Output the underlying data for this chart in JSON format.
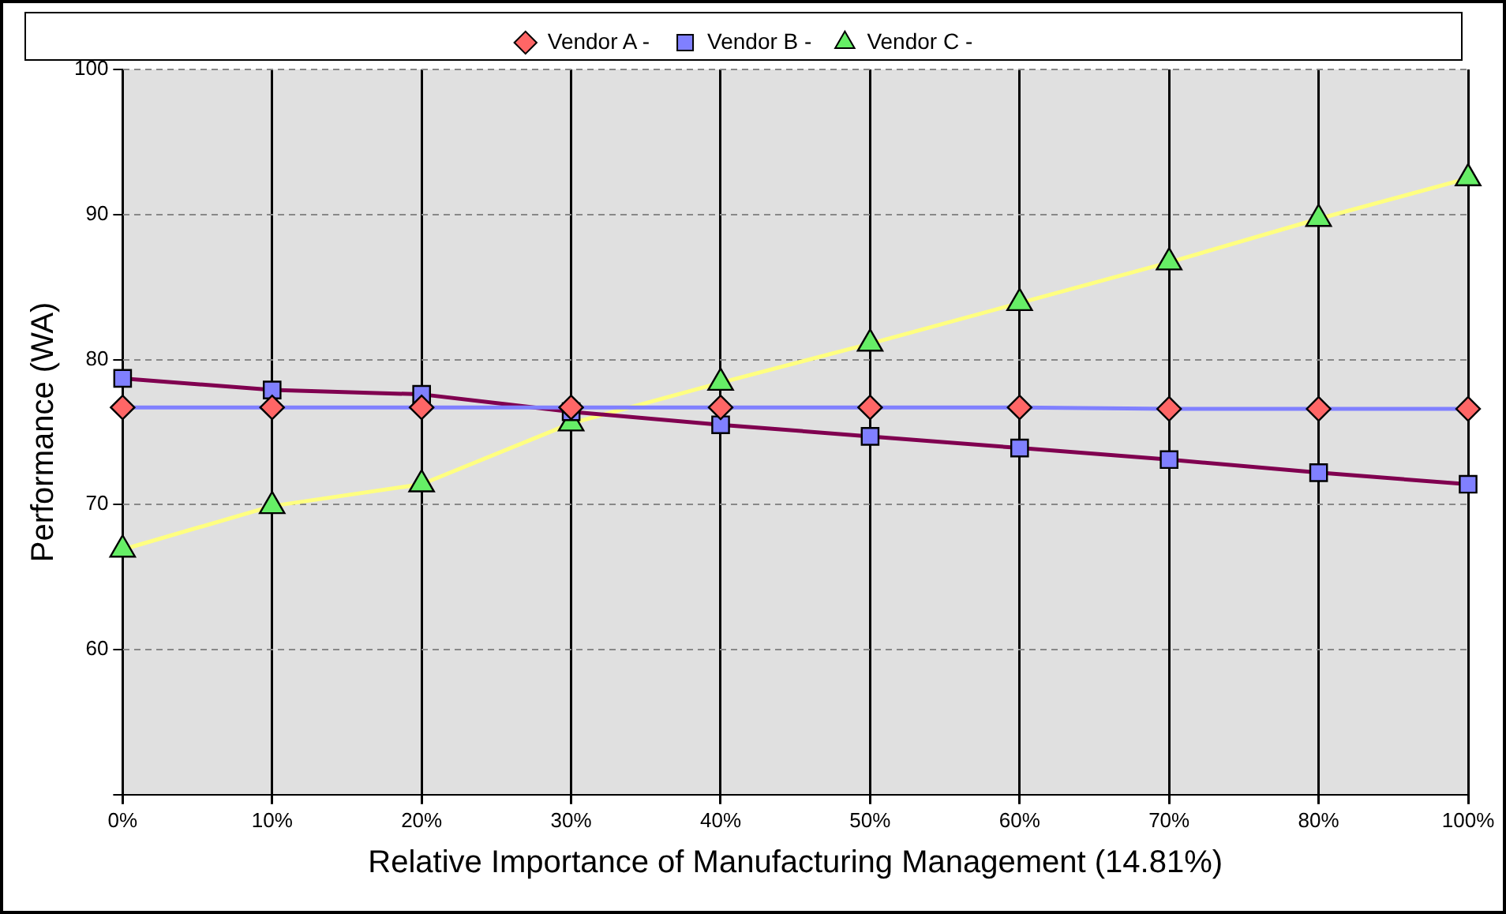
{
  "chart_data": {
    "type": "line",
    "xlabel": "Relative Importance of Manufacturing Management (14.81%)",
    "ylabel": "Performance (WA)",
    "categories": [
      "0%",
      "10%",
      "20%",
      "30%",
      "40%",
      "50%",
      "60%",
      "70%",
      "80%",
      "100%"
    ],
    "series": [
      {
        "name": "Vendor A -",
        "color": "#8080ff",
        "marker": "diamond",
        "colors": [
          "#ff6666",
          "#ff6666",
          "#ff6666",
          "#ff6666",
          "#ff6666",
          "#ff6666",
          "#ff6666",
          "#ff6666",
          "#ff6666",
          "#ff6666"
        ],
        "values": [
          76.7,
          76.7,
          76.7,
          76.7,
          76.7,
          76.7,
          76.7,
          76.6,
          76.6,
          76.6
        ]
      },
      {
        "name": "Vendor B -",
        "color": "#800050",
        "marker": "square",
        "colors": [
          "#8080ff",
          "#8080ff",
          "#8080ff",
          "#8080ff",
          "#8080ff",
          "#8080ff",
          "#8080ff",
          "#8080ff",
          "#8080ff",
          "#8080ff"
        ],
        "values": [
          78.7,
          77.9,
          77.6,
          76.4,
          75.5,
          74.7,
          73.9,
          73.1,
          72.2,
          71.4
        ]
      },
      {
        "name": "Vendor C -",
        "color": "#ffff80",
        "marker": "triangle",
        "colors": [
          "#66ee66",
          "#66ee66",
          "#66ee66",
          "#66ee66",
          "#66ee66",
          "#66ee66",
          "#66ee66",
          "#66ee66",
          "#66ee66",
          "#66ee66"
        ],
        "values": [
          66.9,
          69.9,
          71.4,
          75.6,
          78.4,
          81.1,
          83.9,
          86.7,
          89.7,
          92.5
        ]
      }
    ],
    "ylim": [
      50,
      100
    ],
    "yticks": [
      {
        "value": 50,
        "label": null
      },
      60,
      70,
      80,
      90,
      100
    ],
    "grid": true,
    "legend": "top",
    "line_style": "solid"
  }
}
